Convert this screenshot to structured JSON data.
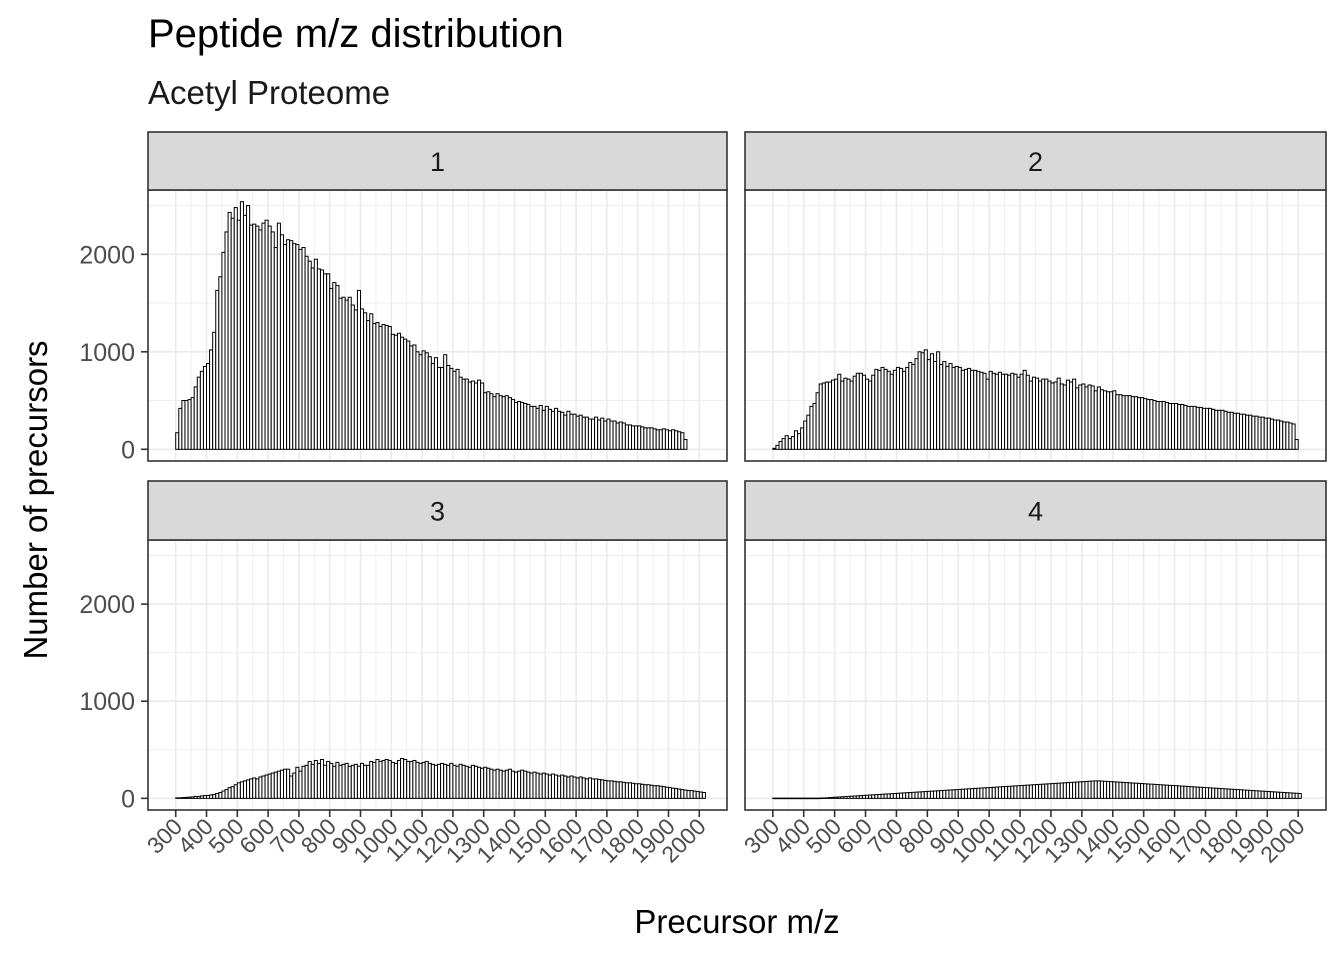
{
  "chart_data": {
    "type": "bar",
    "title": "Peptide m/z distribution",
    "subtitle": "Acetyl Proteome",
    "xlabel": "Precursor m/z",
    "ylabel": "Number of precursors",
    "x_ticks": [
      "300",
      "400",
      "500",
      "600",
      "700",
      "800",
      "900",
      "1000",
      "1100",
      "1200",
      "1300",
      "1400",
      "1500",
      "1600",
      "1700",
      "1800",
      "1900",
      "2000"
    ],
    "y_ticks": [
      "0",
      "1000",
      "2000"
    ],
    "xlim": [
      210,
      2090
    ],
    "ylim": [
      -120,
      2660
    ],
    "bin_width": 10,
    "facet_layout": "2x2",
    "grid": true,
    "theme": {
      "bar_fill": "#ffffff",
      "bar_stroke": "#000000",
      "strip_fill": "#d9d9d9",
      "grid": "#ebebeb",
      "panel_border": "#333333"
    },
    "panels": [
      {
        "label": "1",
        "values": [
          170,
          420,
          500,
          500,
          510,
          530,
          640,
          740,
          800,
          850,
          880,
          1020,
          1200,
          1630,
          1770,
          2020,
          2230,
          2430,
          2370,
          2480,
          2350,
          2540,
          2400,
          2500,
          2300,
          2310,
          2290,
          2250,
          2320,
          2350,
          2290,
          2230,
          2070,
          2320,
          2200,
          2100,
          2150,
          2140,
          2110,
          2100,
          2050,
          2070,
          1980,
          1930,
          1860,
          1950,
          1850,
          1840,
          1800,
          1800,
          1650,
          1710,
          1680,
          1550,
          1560,
          1530,
          1560,
          1480,
          1430,
          1630,
          1440,
          1400,
          1320,
          1390,
          1290,
          1300,
          1260,
          1280,
          1270,
          1260,
          1180,
          1170,
          1190,
          1150,
          1130,
          1110,
          1060,
          1070,
          1000,
          970,
          1010,
          990,
          950,
          880,
          940,
          840,
          840,
          970,
          860,
          830,
          800,
          820,
          740,
          720,
          720,
          690,
          700,
          680,
          710,
          680,
          580,
          590,
          570,
          540,
          570,
          550,
          540,
          550,
          530,
          510,
          480,
          490,
          480,
          470,
          460,
          440,
          440,
          420,
          450,
          400,
          440,
          410,
          390,
          420,
          390,
          380,
          350,
          390,
          360,
          360,
          340,
          350,
          330,
          330,
          310,
          310,
          330,
          300,
          320,
          290,
          310,
          290,
          290,
          270,
          280,
          270,
          250,
          250,
          240,
          240,
          240,
          230,
          220,
          220,
          220,
          210,
          200,
          200,
          210,
          200,
          190,
          200,
          190,
          180,
          170,
          100
        ]
      },
      {
        "label": "2",
        "values": [
          10,
          40,
          80,
          110,
          140,
          110,
          130,
          190,
          160,
          220,
          290,
          350,
          440,
          470,
          580,
          670,
          680,
          690,
          690,
          710,
          720,
          770,
          700,
          730,
          720,
          700,
          750,
          780,
          780,
          760,
          720,
          700,
          760,
          820,
          810,
          840,
          820,
          800,
          770,
          810,
          840,
          830,
          800,
          840,
          890,
          870,
          930,
          1000,
          990,
          1020,
          920,
          980,
          900,
          1000,
          870,
          900,
          850,
          880,
          840,
          850,
          840,
          810,
          820,
          830,
          810,
          810,
          800,
          790,
          780,
          720,
          800,
          780,
          770,
          790,
          770,
          770,
          760,
          780,
          770,
          740,
          770,
          810,
          760,
          700,
          740,
          730,
          700,
          720,
          720,
          700,
          680,
          690,
          730,
          670,
          660,
          710,
          690,
          720,
          630,
          660,
          670,
          640,
          660,
          650,
          600,
          640,
          610,
          600,
          590,
          590,
          600,
          560,
          560,
          550,
          550,
          550,
          540,
          540,
          530,
          530,
          520,
          510,
          510,
          500,
          490,
          490,
          490,
          480,
          470,
          470,
          470,
          460,
          460,
          450,
          440,
          440,
          440,
          430,
          430,
          420,
          420,
          420,
          410,
          400,
          400,
          400,
          390,
          380,
          380,
          370,
          370,
          360,
          360,
          350,
          350,
          340,
          340,
          330,
          330,
          320,
          320,
          310,
          300,
          300,
          290,
          280,
          280,
          270,
          260,
          100
        ]
      },
      {
        "label": "3",
        "values": [
          5,
          5,
          8,
          10,
          12,
          15,
          20,
          18,
          25,
          28,
          30,
          35,
          40,
          50,
          60,
          75,
          90,
          110,
          120,
          140,
          160,
          170,
          180,
          190,
          200,
          210,
          200,
          220,
          230,
          240,
          250,
          260,
          270,
          280,
          290,
          300,
          300,
          230,
          260,
          320,
          280,
          330,
          340,
          380,
          350,
          390,
          360,
          400,
          340,
          380,
          360,
          330,
          370,
          340,
          350,
          360,
          330,
          340,
          350,
          330,
          360,
          340,
          340,
          380,
          370,
          400,
          380,
          390,
          400,
          390,
          370,
          360,
          390,
          410,
          400,
          380,
          380,
          390,
          370,
          360,
          370,
          380,
          360,
          350,
          340,
          350,
          360,
          350,
          340,
          360,
          340,
          330,
          350,
          340,
          330,
          320,
          340,
          330,
          320,
          310,
          320,
          310,
          300,
          290,
          300,
          290,
          280,
          290,
          300,
          280,
          270,
          280,
          290,
          280,
          270,
          260,
          270,
          260,
          250,
          260,
          250,
          240,
          250,
          240,
          230,
          240,
          230,
          220,
          230,
          220,
          210,
          220,
          210,
          200,
          210,
          200,
          200,
          195,
          190,
          185,
          180,
          180,
          175,
          170,
          170,
          165,
          160,
          160,
          155,
          150,
          150,
          145,
          140,
          140,
          135,
          130,
          130,
          125,
          120,
          115,
          110,
          105,
          100,
          95,
          90,
          85,
          80,
          80,
          75,
          70,
          65,
          60
        ]
      },
      {
        "label": "4",
        "values": [
          2,
          2,
          2,
          2,
          2,
          2,
          2,
          2,
          2,
          2,
          2,
          2,
          2,
          2,
          2,
          3,
          4,
          5,
          8,
          10,
          12,
          14,
          16,
          18,
          20,
          22,
          24,
          26,
          28,
          30,
          32,
          34,
          36,
          38,
          40,
          42,
          44,
          46,
          48,
          50,
          52,
          54,
          56,
          58,
          60,
          62,
          64,
          66,
          68,
          70,
          72,
          74,
          76,
          78,
          80,
          82,
          84,
          86,
          88,
          90,
          92,
          94,
          96,
          98,
          100,
          102,
          104,
          106,
          108,
          110,
          112,
          114,
          116,
          118,
          120,
          122,
          124,
          126,
          128,
          130,
          132,
          134,
          136,
          138,
          140,
          142,
          144,
          146,
          148,
          150,
          152,
          154,
          156,
          158,
          160,
          162,
          164,
          166,
          168,
          170,
          172,
          174,
          176,
          178,
          180,
          180,
          178,
          176,
          174,
          172,
          170,
          168,
          166,
          164,
          162,
          160,
          158,
          156,
          154,
          152,
          150,
          148,
          146,
          144,
          142,
          140,
          138,
          136,
          134,
          132,
          130,
          128,
          126,
          124,
          122,
          120,
          118,
          116,
          114,
          112,
          110,
          108,
          106,
          104,
          102,
          100,
          98,
          96,
          94,
          92,
          90,
          88,
          86,
          84,
          82,
          80,
          78,
          76,
          74,
          72,
          70,
          68,
          66,
          64,
          62,
          60,
          58,
          56,
          54,
          52,
          50
        ]
      }
    ]
  }
}
